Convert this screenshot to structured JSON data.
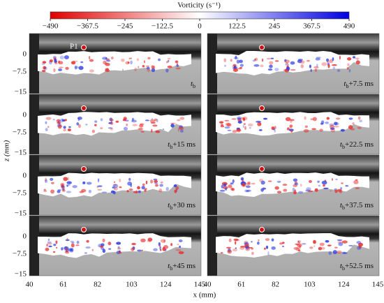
{
  "colorbar": {
    "label": "Vorticity (s⁻¹)",
    "ticks": [
      "−490",
      "−367.5",
      "−245",
      "−122.5",
      "0",
      "122.5",
      "245",
      "367.5",
      "490"
    ]
  },
  "y_axis": {
    "label": "z (mm)",
    "ticks": [
      "0",
      "−7.5",
      "−15"
    ]
  },
  "x_axis": {
    "label": "x (mm)",
    "ticks": [
      "40",
      "61",
      "82",
      "103",
      "124",
      "145"
    ]
  },
  "point_label": "P1",
  "panels": [
    {
      "base": "t",
      "sub": "b",
      "suffix": ""
    },
    {
      "base": "t",
      "sub": "b",
      "suffix": "+7.5 ms"
    },
    {
      "base": "t",
      "sub": "b",
      "suffix": "+15 ms"
    },
    {
      "base": "t",
      "sub": "b",
      "suffix": "+22.5 ms"
    },
    {
      "base": "t",
      "sub": "b",
      "suffix": "+30 ms"
    },
    {
      "base": "t",
      "sub": "b",
      "suffix": "+37.5 ms"
    },
    {
      "base": "t",
      "sub": "b",
      "suffix": "+45 ms"
    },
    {
      "base": "t",
      "sub": "b",
      "suffix": "+52.5 ms"
    }
  ]
}
